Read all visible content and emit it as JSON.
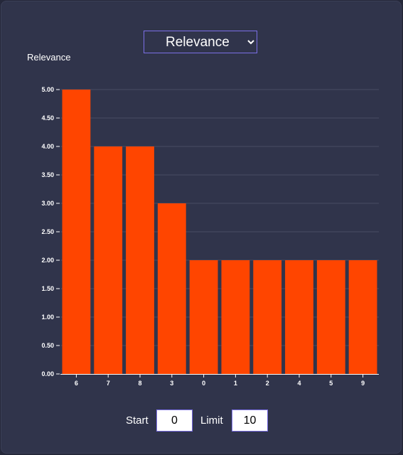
{
  "select": {
    "selected": "Relevance",
    "options": [
      "Relevance"
    ]
  },
  "controls": {
    "start_label": "Start",
    "start_value": "0",
    "limit_label": "Limit",
    "limit_value": "10"
  },
  "colors": {
    "bar": "#ff4500",
    "background": "#30344b",
    "grid": "#484c63",
    "accent_border": "#7b6fe6",
    "text": "#ffffff"
  },
  "chart_data": {
    "type": "bar",
    "ylabel": "Relevance",
    "xlabel": "",
    "categories": [
      "6",
      "7",
      "8",
      "3",
      "0",
      "1",
      "2",
      "4",
      "5",
      "9"
    ],
    "values": [
      5,
      4,
      4,
      3,
      2,
      2,
      2,
      2,
      2,
      2
    ],
    "ylim": [
      0,
      5
    ],
    "yticks": [
      "0.00",
      "0.50",
      "1.00",
      "1.50",
      "2.00",
      "2.50",
      "3.00",
      "3.50",
      "4.00",
      "4.50",
      "5.00"
    ],
    "grid": true
  }
}
